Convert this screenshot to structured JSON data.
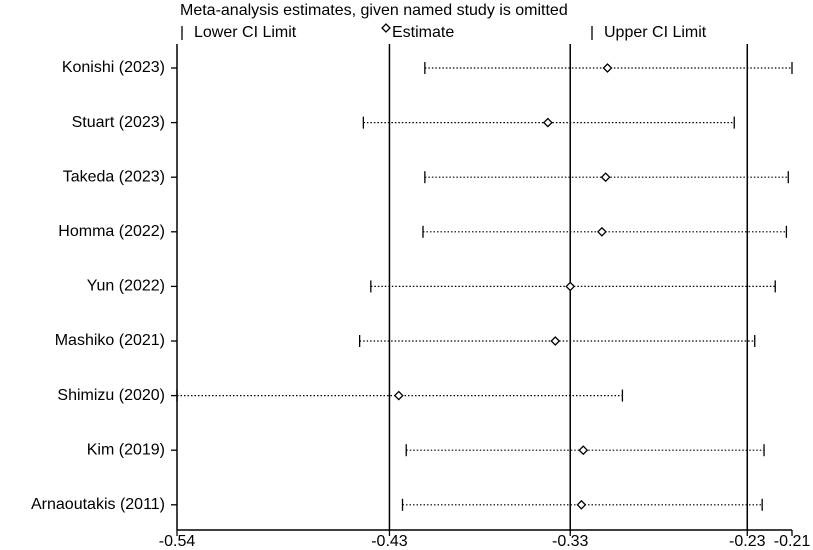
{
  "chart_data": {
    "type": "sensitivity",
    "title": "Meta-analysis estimates, given named study is omitted",
    "categories": [
      "Konishi (2023)",
      "Stuart (2023)",
      "Takeda (2023)",
      "Homma (2022)",
      "Yun (2022)",
      "Mashiko (2021)",
      "Shimizu (2020)",
      "Kim (2019)",
      "Arnaoutakis (2011)"
    ],
    "series": [
      {
        "name": "Lower CI Limit",
        "color": "#000000",
        "values": [
          -0.407,
          -0.44,
          -0.407,
          -0.408,
          -0.436,
          -0.442,
          -0.54,
          -0.417,
          -0.419
        ]
      },
      {
        "name": "Estimate",
        "color": "#000000",
        "values": [
          -0.309,
          -0.341,
          -0.31,
          -0.312,
          -0.329,
          -0.337,
          -0.421,
          -0.322,
          -0.323
        ]
      },
      {
        "name": "Upper CI Limit",
        "color": "#000000",
        "values": [
          -0.21,
          -0.241,
          -0.212,
          -0.213,
          -0.219,
          -0.23,
          -0.301,
          -0.225,
          -0.226
        ]
      }
    ],
    "xlim": [
      -0.54,
      -0.21
    ],
    "xticks": [
      -0.54,
      {
        "value": -0.426,
        "label": "-0.43"
      },
      {
        "value": -0.329,
        "label": "-0.33"
      },
      {
        "value": -0.234,
        "label": "-0.23"
      },
      -0.21
    ]
  }
}
